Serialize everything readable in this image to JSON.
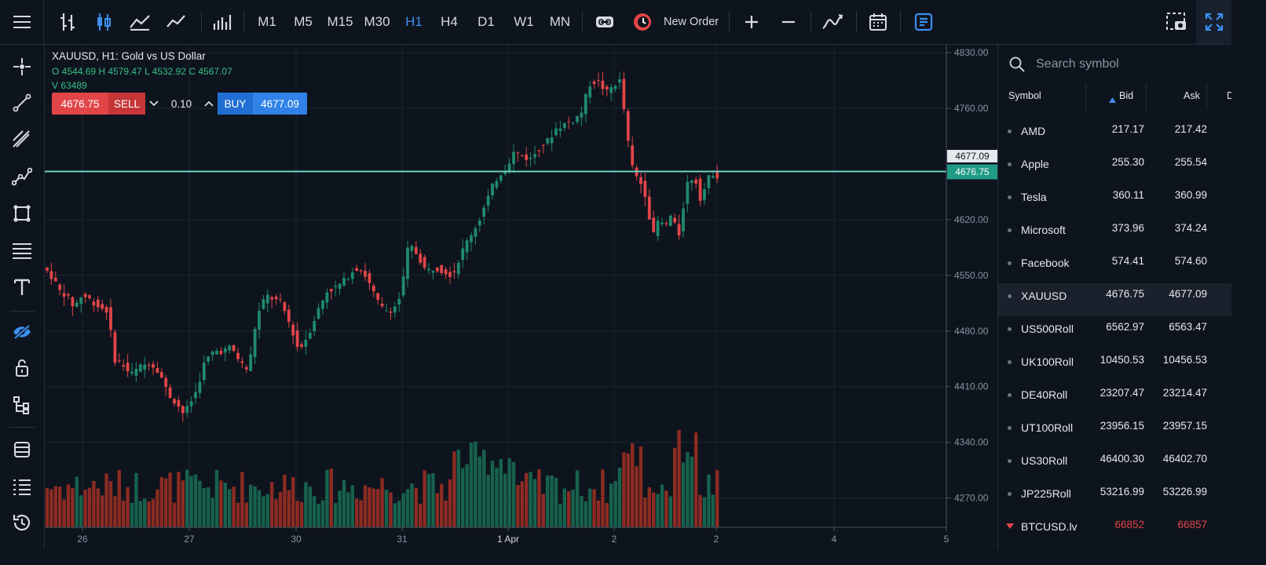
{
  "toolbar": {
    "timeframes": [
      "M1",
      "M5",
      "M15",
      "M30",
      "H1",
      "H4",
      "D1",
      "W1",
      "MN"
    ],
    "active_timeframe": "H1",
    "new_order_label": "New Order"
  },
  "legend": {
    "title": "XAUUSD, H1: Gold vs US Dollar",
    "ohlc": "O 4544.69 H 4579.47 L 4532.92 C 4567.07",
    "volume": "V 63489"
  },
  "trade": {
    "sell_price": "4676.75",
    "sell_label": "SELL",
    "lot": "0.10",
    "buy_label": "BUY",
    "buy_price": "4677.09"
  },
  "watchlist": {
    "search_placeholder": "Search symbol",
    "columns": {
      "symbol": "Symbol",
      "bid": "Bid",
      "ask": "Ask",
      "extra": "D"
    },
    "rows": [
      {
        "symbol": "AMD",
        "bid": "217.17",
        "ask": "217.42"
      },
      {
        "symbol": "Apple",
        "bid": "255.30",
        "ask": "255.54"
      },
      {
        "symbol": "Tesla",
        "bid": "360.11",
        "ask": "360.99"
      },
      {
        "symbol": "Microsoft",
        "bid": "373.96",
        "ask": "374.24"
      },
      {
        "symbol": "Facebook",
        "bid": "574.41",
        "ask": "574.60"
      },
      {
        "symbol": "XAUUSD",
        "bid": "4676.75",
        "ask": "4677.09",
        "selected": true
      },
      {
        "symbol": "US500Roll",
        "bid": "6562.97",
        "ask": "6563.47"
      },
      {
        "symbol": "UK100Roll",
        "bid": "10450.53",
        "ask": "10456.53"
      },
      {
        "symbol": "DE40Roll",
        "bid": "23207.47",
        "ask": "23214.47"
      },
      {
        "symbol": "UT100Roll",
        "bid": "23956.15",
        "ask": "23957.15"
      },
      {
        "symbol": "US30Roll",
        "bid": "46400.30",
        "ask": "46402.70"
      },
      {
        "symbol": "JP225Roll",
        "bid": "53216.99",
        "ask": "53226.99"
      },
      {
        "symbol": "BTCUSD.lv",
        "bid": "66852",
        "ask": "66857",
        "down": true
      }
    ]
  },
  "colors": {
    "bull": "#1f8a6c",
    "bear": "#e24548",
    "accent": "#3d8ef0",
    "price_line": "#6fd3c4"
  },
  "chart_data": {
    "type": "candlestick",
    "symbol": "XAUUSD",
    "timeframe": "H1",
    "y_ticks": [
      "4830.00",
      "4760.00",
      "4620.00",
      "4550.00",
      "4480.00",
      "4410.00",
      "4340.00",
      "4270.00"
    ],
    "y_range": [
      4240,
      4840
    ],
    "x_ticks": [
      "26",
      "27",
      "30",
      "31",
      "1 Apr",
      "2",
      "2",
      "4",
      "5"
    ],
    "ask_price": "4677.09",
    "bid_price": "4676.75"
  }
}
